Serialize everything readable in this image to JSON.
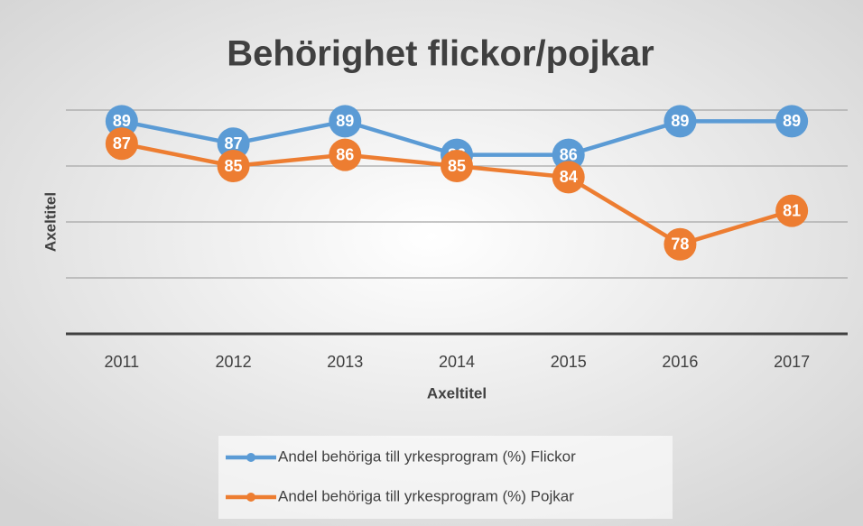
{
  "chart_data": {
    "type": "line",
    "title": "Behörighet flickor/pojkar",
    "x_label": "Axeltitel",
    "y_label": "Axeltitel",
    "categories": [
      "2011",
      "2012",
      "2013",
      "2014",
      "2015",
      "2016",
      "2017"
    ],
    "series": [
      {
        "name": "Andel behöriga till yrkesprogram (%) Flickor",
        "color": "#5b9bd5",
        "values": [
          89,
          87,
          89,
          86,
          86,
          89,
          89
        ]
      },
      {
        "name": "Andel behöriga till yrkesprogram (%) Pojkar",
        "color": "#ed7d31",
        "values": [
          87,
          85,
          86,
          85,
          84,
          78,
          81
        ]
      }
    ],
    "ylim": [
      70,
      90
    ],
    "yticks": [
      70,
      75,
      80,
      85,
      90
    ],
    "grid": true,
    "data_labels": true,
    "legend": "bottom"
  }
}
